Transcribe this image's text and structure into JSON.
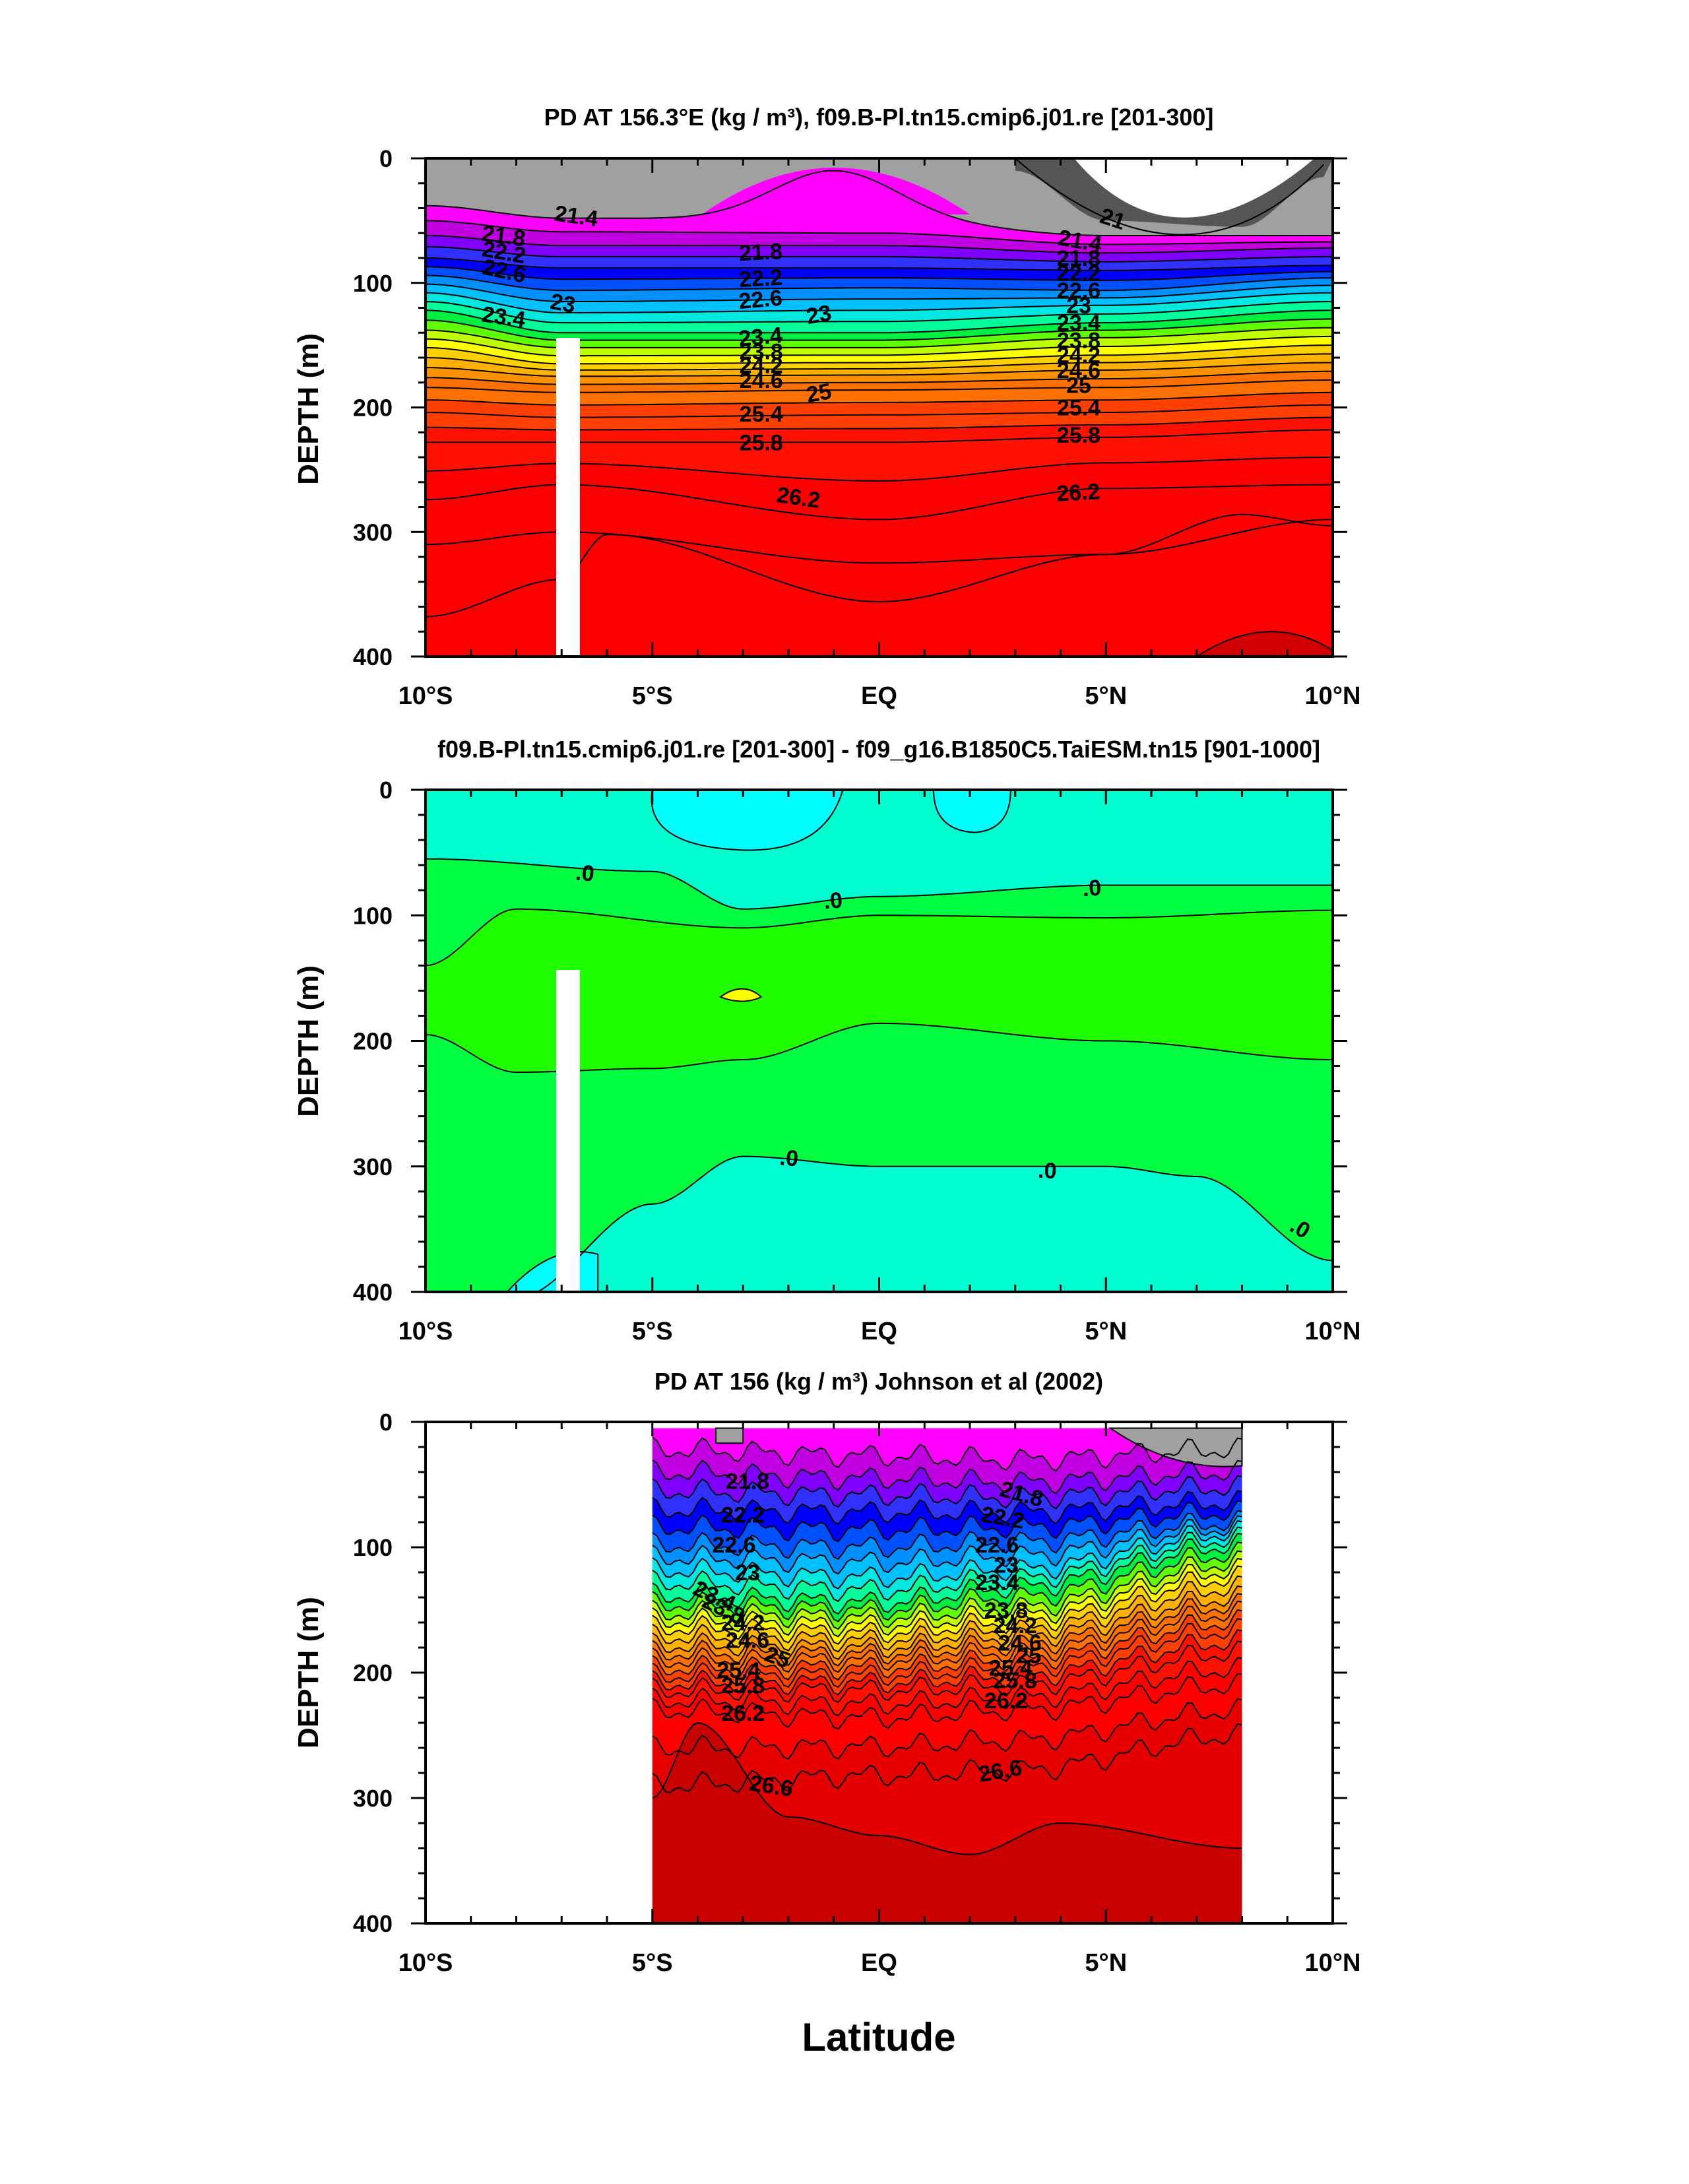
{
  "figure": {
    "xlabel": "Latitude"
  },
  "chart_data": [
    {
      "type": "contour",
      "panel": "model",
      "title": "PD AT 156.3°E (kg / m³), f09.B-Pl.tn15.cmip6.j01.re [201-300]",
      "ylabel": "DEPTH (m)",
      "xlim": [
        -10,
        10
      ],
      "ylim": [
        400,
        0
      ],
      "x_tick_labels": [
        "10°S",
        "5°S",
        "EQ",
        "5°N",
        "10°N"
      ],
      "x_tick_values": [
        -10,
        -5,
        0,
        5,
        10
      ],
      "y_tick_labels": [
        "0",
        "100",
        "200",
        "300",
        "400"
      ],
      "y_tick_values": [
        0,
        100,
        200,
        300,
        400
      ],
      "contour_interval": 0.2,
      "contour_labels": [
        "21",
        "21.4",
        "21.8",
        "22.2",
        "22.6",
        "23",
        "23.4",
        "23.8",
        "24.2",
        "24.6",
        "25",
        "25.4",
        "25.8",
        "26.2"
      ],
      "isopycnal_depths": [
        {
          "level": 21.0,
          "lat": [
            3.0,
            5.0,
            8.0,
            9.8
          ],
          "depth": [
            10,
            50,
            55,
            15
          ]
        },
        {
          "level": 21.4,
          "lat": [
            -10,
            -7,
            0,
            5,
            10
          ],
          "depth": [
            38,
            48,
            50,
            62,
            62
          ]
        },
        {
          "level": 21.8,
          "lat": [
            -10,
            -7,
            0,
            5,
            10
          ],
          "depth": [
            62,
            70,
            70,
            76,
            72
          ]
        },
        {
          "level": 22.2,
          "lat": [
            -10,
            -7,
            0,
            5,
            10
          ],
          "depth": [
            80,
            88,
            88,
            90,
            86
          ]
        },
        {
          "level": 22.6,
          "lat": [
            -10,
            -7,
            0,
            5,
            10
          ],
          "depth": [
            94,
            106,
            104,
            106,
            96
          ]
        },
        {
          "level": 23.0,
          "lat": [
            -10,
            -7,
            0,
            5,
            10
          ],
          "depth": [
            108,
            124,
            122,
            118,
            108
          ]
        },
        {
          "level": 23.4,
          "lat": [
            -10,
            -7,
            0,
            5,
            10
          ],
          "depth": [
            122,
            140,
            140,
            132,
            122
          ]
        },
        {
          "level": 23.8,
          "lat": [
            -10,
            -7,
            0,
            5,
            10
          ],
          "depth": [
            138,
            152,
            152,
            144,
            136
          ]
        },
        {
          "level": 24.2,
          "lat": [
            -10,
            -7,
            0,
            5,
            10
          ],
          "depth": [
            152,
            165,
            164,
            158,
            150
          ]
        },
        {
          "level": 24.6,
          "lat": [
            -10,
            -7,
            0,
            5,
            10
          ],
          "depth": [
            168,
            175,
            174,
            170,
            164
          ]
        },
        {
          "level": 25.0,
          "lat": [
            -10,
            -7,
            0,
            5,
            10
          ],
          "depth": [
            184,
            188,
            186,
            184,
            178
          ]
        },
        {
          "level": 25.4,
          "lat": [
            -10,
            -7,
            0,
            5,
            10
          ],
          "depth": [
            204,
            208,
            206,
            204,
            198
          ]
        },
        {
          "level": 25.8,
          "lat": [
            -10,
            -7,
            0,
            5,
            10
          ],
          "depth": [
            228,
            228,
            228,
            224,
            218
          ]
        },
        {
          "level": 26.2,
          "lat": [
            -10,
            -7,
            0,
            5,
            10
          ],
          "depth": [
            274,
            262,
            290,
            265,
            262
          ]
        }
      ],
      "notes_min_max": {
        "min": 21.0,
        "max": 26.6
      }
    },
    {
      "type": "contour",
      "panel": "difference",
      "title": "f09.B-Pl.tn15.cmip6.j01.re [201-300] - f09_g16.B1850C5.TaiESM.tn15 [901-1000]",
      "ylabel": "DEPTH (m)",
      "xlim": [
        -10,
        10
      ],
      "ylim": [
        400,
        0
      ],
      "x_tick_labels": [
        "10°S",
        "5°S",
        "EQ",
        "5°N",
        "10°N"
      ],
      "y_tick_labels": [
        "0",
        "100",
        "200",
        "300",
        "400"
      ],
      "contour_labels": [
        ".0",
        ".0",
        ".0",
        ".0",
        ".0",
        ".0"
      ],
      "zero_contour_depths": [
        {
          "lat": [
            -10,
            -5,
            -3,
            0,
            5,
            10
          ],
          "depth": [
            55,
            72,
            95,
            86,
            76,
            76
          ]
        },
        {
          "lat": [
            -10,
            -5,
            -3,
            0,
            5,
            10
          ],
          "depth": [
            300,
            290,
            280,
            300,
            300,
            370
          ]
        }
      ]
    },
    {
      "type": "contour",
      "panel": "observations",
      "title": "PD AT 156 (kg / m³) Johnson et al (2002)",
      "ylabel": "DEPTH (m)",
      "xlim": [
        -10,
        10
      ],
      "ylim": [
        400,
        0
      ],
      "data_lat_range": [
        -5,
        8
      ],
      "x_tick_labels": [
        "10°S",
        "5°S",
        "EQ",
        "5°N",
        "10°N"
      ],
      "y_tick_labels": [
        "0",
        "100",
        "200",
        "300",
        "400"
      ],
      "contour_labels": [
        "21.8",
        "22.2",
        "22.6",
        "23",
        "23.4",
        "23.8",
        "24.2",
        "24.6",
        "25",
        "25.4",
        "25.8",
        "26.2",
        "26.6"
      ],
      "isopycnal_depths": [
        {
          "level": 21.8,
          "lat": [
            -5,
            0,
            3,
            8
          ],
          "depth": [
            40,
            45,
            48,
            40
          ]
        },
        {
          "level": 22.2,
          "lat": [
            -5,
            0,
            3,
            8
          ],
          "depth": [
            70,
            72,
            72,
            64
          ]
        },
        {
          "level": 22.6,
          "lat": [
            -5,
            0,
            3,
            8
          ],
          "depth": [
            98,
            100,
            96,
            80
          ]
        },
        {
          "level": 23.0,
          "lat": [
            -5,
            0,
            3,
            8
          ],
          "depth": [
            118,
            124,
            118,
            88
          ]
        },
        {
          "level": 23.4,
          "lat": [
            -5,
            0,
            3,
            8
          ],
          "depth": [
            138,
            144,
            132,
            98
          ]
        },
        {
          "level": 23.8,
          "lat": [
            -5,
            0,
            3,
            8
          ],
          "depth": [
            152,
            156,
            148,
            112
          ]
        },
        {
          "level": 24.2,
          "lat": [
            -5,
            0,
            3,
            8
          ],
          "depth": [
            164,
            168,
            160,
            124
          ]
        },
        {
          "level": 24.6,
          "lat": [
            -5,
            0,
            3,
            8
          ],
          "depth": [
            178,
            180,
            172,
            140
          ]
        },
        {
          "level": 25.0,
          "lat": [
            -5,
            0,
            3,
            8
          ],
          "depth": [
            190,
            190,
            184,
            152
          ]
        },
        {
          "level": 25.4,
          "lat": [
            -5,
            0,
            3,
            8
          ],
          "depth": [
            202,
            202,
            196,
            166
          ]
        },
        {
          "level": 25.8,
          "lat": [
            -5,
            0,
            3,
            8
          ],
          "depth": [
            214,
            214,
            210,
            184
          ]
        },
        {
          "level": 26.2,
          "lat": [
            -5,
            0,
            3,
            8
          ],
          "depth": [
            230,
            236,
            230,
            210
          ]
        },
        {
          "level": 26.6,
          "lat": [
            -5,
            0,
            3,
            8
          ],
          "depth": [
            290,
            282,
            278,
            250
          ]
        }
      ]
    }
  ],
  "colors": {
    "land_gap": "#ffffff",
    "model_palette": [
      "#555555",
      "#a0a0a0",
      "#ff00ff",
      "#c000e0",
      "#8000ff",
      "#3030ff",
      "#0000ff",
      "#0050ff",
      "#0090ff",
      "#00c0ff",
      "#00e8e0",
      "#00ff9a",
      "#00f040",
      "#60ff00",
      "#c0ff00",
      "#ffff00",
      "#ffd000",
      "#ffb000",
      "#ff9000",
      "#ff7000",
      "#ff4000",
      "#ff1000",
      "#ff0000",
      "#d00000"
    ],
    "diff_cyan": "#00ffff",
    "diff_aqua": "#00ffd0",
    "diff_green": "#00ff40",
    "diff_lime": "#20ff00",
    "diff_yellow": "#ffff00"
  }
}
